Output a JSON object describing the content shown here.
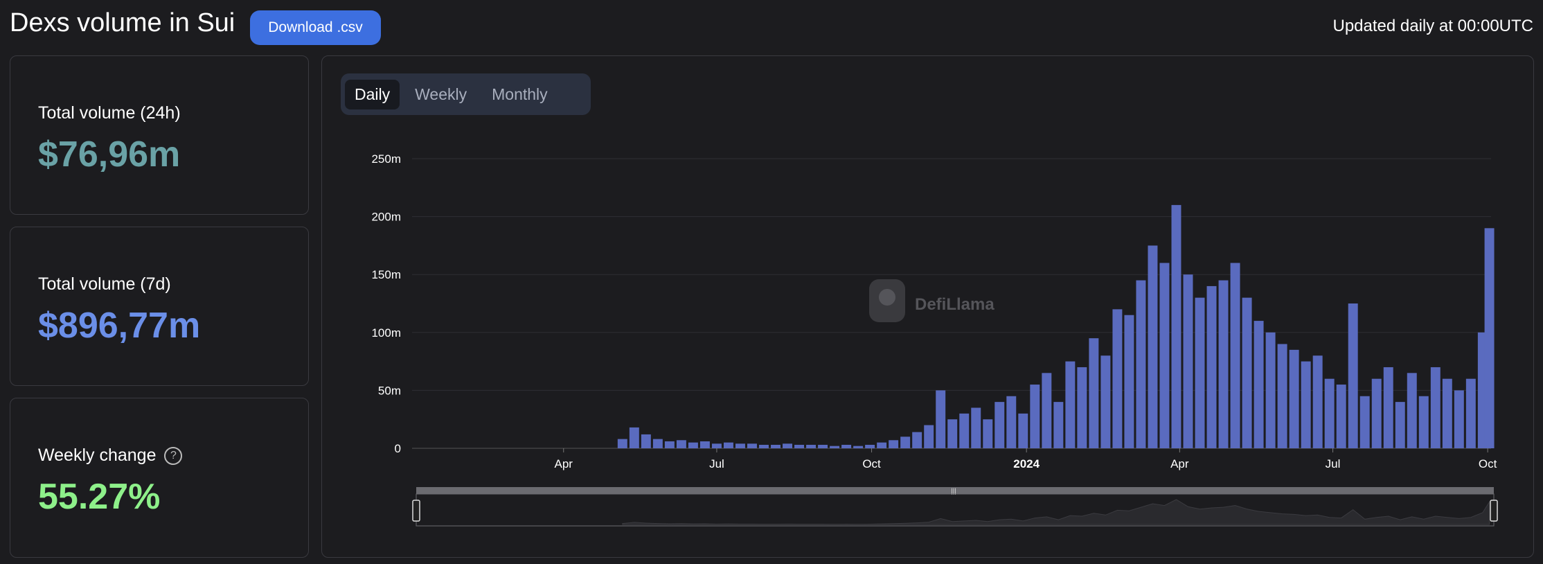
{
  "header": {
    "title": "Dexs volume in Sui",
    "download_label": "Download .csv",
    "updated_text": "Updated daily at 00:00UTC"
  },
  "stats": [
    {
      "label": "Total volume (24h)",
      "value": "$76,96m",
      "color": "#6aa2a6"
    },
    {
      "label": "Total volume (7d)",
      "value": "$896,77m",
      "color": "#6b8fe8"
    },
    {
      "label": "Weekly change",
      "value": "55.27%",
      "color": "#8ef08a",
      "help_icon": "question-circle-icon"
    }
  ],
  "tabs": [
    {
      "label": "Daily",
      "active": true
    },
    {
      "label": "Weekly",
      "active": false
    },
    {
      "label": "Monthly",
      "active": false
    }
  ],
  "watermark": "DefiLlama",
  "chart_data": {
    "type": "bar",
    "y_tick_labels": [
      "0",
      "50m",
      "100m",
      "150m",
      "200m",
      "250m"
    ],
    "y_ticks": [
      0,
      50,
      100,
      150,
      200,
      250
    ],
    "x_tick_labels": [
      "Apr",
      "Jul",
      "Oct",
      "2024",
      "Apr",
      "Jul",
      "Oct"
    ],
    "x_ticks": [
      "2023-04-01",
      "2023-07-01",
      "2023-10-01",
      "2024-01-01",
      "2024-04-01",
      "2024-07-01",
      "2024-10-01"
    ],
    "xlim": [
      "2023-01-01",
      "2024-10-03"
    ],
    "ylim": [
      0,
      250
    ],
    "bar_color": "#5a6bbf",
    "grid": true,
    "series": [
      {
        "dates": [
          "2023-05-06",
          "2023-05-13",
          "2023-05-20",
          "2023-05-27",
          "2023-06-03",
          "2023-06-10",
          "2023-06-17",
          "2023-06-24",
          "2023-07-01",
          "2023-07-08",
          "2023-07-15",
          "2023-07-22",
          "2023-07-29",
          "2023-08-05",
          "2023-08-12",
          "2023-08-19",
          "2023-08-26",
          "2023-09-02",
          "2023-09-09",
          "2023-09-16",
          "2023-09-23",
          "2023-09-30",
          "2023-10-07",
          "2023-10-14",
          "2023-10-21",
          "2023-10-28",
          "2023-11-04",
          "2023-11-11",
          "2023-11-18",
          "2023-11-25",
          "2023-12-02",
          "2023-12-09",
          "2023-12-16",
          "2023-12-23",
          "2023-12-30",
          "2024-01-06",
          "2024-01-13",
          "2024-01-20",
          "2024-01-27",
          "2024-02-03",
          "2024-02-10",
          "2024-02-17",
          "2024-02-24",
          "2024-03-02",
          "2024-03-09",
          "2024-03-16",
          "2024-03-23",
          "2024-03-30",
          "2024-04-06",
          "2024-04-13",
          "2024-04-20",
          "2024-04-27",
          "2024-05-04",
          "2024-05-11",
          "2024-05-18",
          "2024-05-25",
          "2024-06-01",
          "2024-06-08",
          "2024-06-15",
          "2024-06-22",
          "2024-06-29",
          "2024-07-06",
          "2024-07-13",
          "2024-07-20",
          "2024-07-27",
          "2024-08-03",
          "2024-08-10",
          "2024-08-17",
          "2024-08-24",
          "2024-08-31",
          "2024-09-07",
          "2024-09-14",
          "2024-09-21",
          "2024-09-28",
          "2024-10-02"
        ],
        "values": [
          8,
          18,
          12,
          8,
          6,
          7,
          5,
          6,
          4,
          5,
          4,
          4,
          3,
          3,
          4,
          3,
          3,
          3,
          2,
          3,
          2,
          3,
          5,
          7,
          10,
          14,
          20,
          50,
          25,
          30,
          35,
          25,
          40,
          45,
          30,
          55,
          65,
          40,
          75,
          70,
          95,
          80,
          120,
          115,
          145,
          175,
          160,
          210,
          150,
          130,
          140,
          145,
          160,
          130,
          110,
          100,
          90,
          85,
          75,
          80,
          60,
          55,
          125,
          45,
          60,
          70,
          40,
          65,
          45,
          70,
          60,
          50,
          60,
          100,
          190
        ]
      }
    ]
  },
  "navigator": {
    "handle_icon": "grip-lines-icon"
  }
}
